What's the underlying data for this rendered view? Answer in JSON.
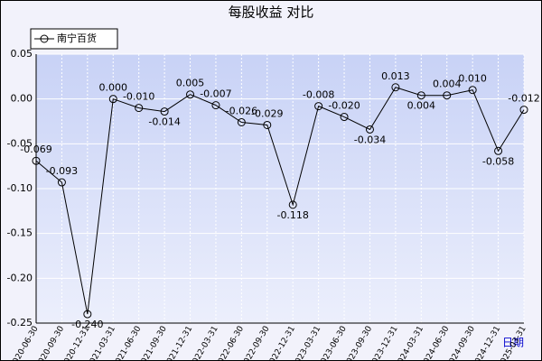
{
  "chart_data": {
    "type": "line",
    "title": "每股收益  对比",
    "x_label": "日期",
    "categories": [
      "2020-06-30",
      "2020-09-30",
      "2020-12-31",
      "2021-03-31",
      "2021-06-30",
      "2021-09-30",
      "2021-12-31",
      "2022-03-31",
      "2022-06-30",
      "2022-09-30",
      "2022-12-31",
      "2023-03-31",
      "2023-06-30",
      "2023-09-30",
      "2023-12-31",
      "2024-03-31",
      "2024-06-30",
      "2024-09-30",
      "2024-12-31",
      "2025-03-31"
    ],
    "series": [
      {
        "name": "南宁百货",
        "color": "#000000",
        "values": [
          -0.069,
          -0.093,
          -0.24,
          0,
          -0.01,
          -0.014,
          0.005,
          -0.007,
          -0.026,
          -0.029,
          -0.118,
          -0.008,
          -0.02,
          -0.034,
          0.013,
          0.004,
          0.004,
          0.01,
          -0.058,
          -0.012
        ],
        "value_labels": [
          "-0.069",
          "-0.093",
          "-0.240",
          "0.000",
          "-0.010",
          "-0.014",
          "0.005",
          "-0.007",
          "-0.026",
          "-0.029",
          "-0.118",
          "-0.008",
          "-0.020",
          "-0.034",
          "0.013",
          "0.004",
          "0.004",
          "0.010",
          "-0.058",
          "-0.012"
        ]
      }
    ],
    "ylim": [
      -0.25,
      0.05
    ],
    "yticks": [
      0.05,
      {
        "value": 0,
        "label": "0.00"
      },
      -0.05,
      {
        "value": -0.1,
        "label": "-0.10"
      },
      -0.15,
      {
        "value": -0.2,
        "label": "-0.20"
      },
      -0.25
    ],
    "grid": true,
    "legend": "top-left"
  }
}
